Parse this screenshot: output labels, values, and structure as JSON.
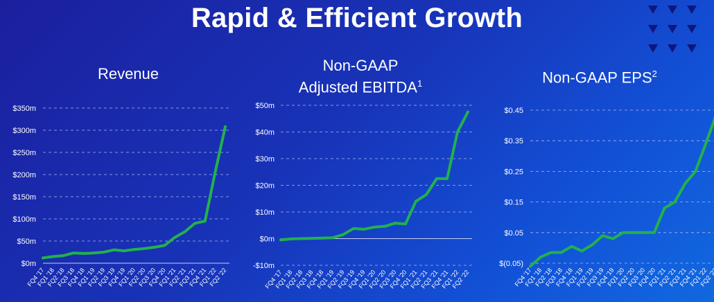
{
  "page": {
    "title": "Rapid & Efficient Growth"
  },
  "chart_data": [
    {
      "type": "line",
      "title": "Revenue",
      "title_sup": "",
      "categories": [
        "FQ4 '17",
        "FQ1 '18",
        "FQ2 '18",
        "FQ3 '18",
        "FQ4 '18",
        "FQ1 '19",
        "FQ2 '19",
        "FQ3 '19",
        "FQ4 '19",
        "FQ1 '20",
        "FQ2 '20",
        "FQ3 '20",
        "FQ4 '20",
        "FQ1 '21",
        "FQ2 '21",
        "FQ3 '21",
        "FQ4 '21",
        "FQ1 '22",
        "FQ2 '22"
      ],
      "series": [
        {
          "name": "Revenue",
          "color": "#22b14c",
          "values": [
            12,
            15,
            17,
            23,
            22,
            23,
            25,
            30,
            28,
            31,
            33,
            36,
            40,
            58,
            71,
            90,
            95,
            205,
            308
          ]
        }
      ],
      "ylim": [
        0,
        350
      ],
      "yticks": [
        0,
        50,
        100,
        150,
        200,
        250,
        300,
        350
      ],
      "ytick_labels": [
        "$0m",
        "$50m",
        "$100m",
        "$150m",
        "$200m",
        "$250m",
        "$300m",
        "$350m"
      ],
      "grid": true
    },
    {
      "type": "line",
      "title": "Non-GAAP Adjusted EBITDA",
      "title_line1": "Non-GAAP",
      "title_line2": "Adjusted EBITDA",
      "title_sup": "1",
      "categories": [
        "FQ4 '17",
        "FQ1 '18",
        "FQ2 '18",
        "FQ3 '18",
        "FQ4 '18",
        "FQ1 '19",
        "FQ2 '19",
        "FQ3 '19",
        "FQ4 '19",
        "FQ1 '20",
        "FQ2 '20",
        "FQ3 '20",
        "FQ4 '20",
        "FQ1 '21",
        "FQ2 '21",
        "FQ3 '21",
        "FQ4 '21",
        "FQ1 '22",
        "FQ2 '22"
      ],
      "series": [
        {
          "name": "Non-GAAP Adjusted EBITDA",
          "color": "#22b14c",
          "values": [
            -0.5,
            -0.1,
            0,
            0.1,
            0.2,
            0.3,
            1.5,
            3.8,
            3.5,
            4.3,
            4.6,
            5.8,
            5.5,
            14,
            16.5,
            22.5,
            22.5,
            40,
            47.5
          ]
        }
      ],
      "ylim": [
        -10,
        50
      ],
      "yticks": [
        -10,
        0,
        10,
        20,
        30,
        40,
        50
      ],
      "ytick_labels": [
        "-$10m",
        "$0m",
        "$10m",
        "$20m",
        "$30m",
        "$40m",
        "$50m"
      ],
      "grid": true
    },
    {
      "type": "line",
      "title": "Non-GAAP EPS",
      "title_sup": "2",
      "categories": [
        "FQ4 '17",
        "FQ1 '18",
        "FQ2 '18",
        "FQ3 '18",
        "FQ4 '18",
        "FQ1 '19",
        "FQ2 '19",
        "FQ3 '19",
        "FQ4 '19",
        "FQ1 '20",
        "FQ2 '20",
        "FQ3 '20",
        "FQ4 '20",
        "FQ1 '21",
        "FQ2 '21",
        "FQ3 '21",
        "FQ4 '21",
        "FQ1 '22",
        "FQ2 '22"
      ],
      "series": [
        {
          "name": "Non-GAAP EPS",
          "color": "#22b14c",
          "values": [
            -0.06,
            -0.03,
            -0.015,
            -0.015,
            0.005,
            -0.01,
            0.01,
            0.04,
            0.03,
            0.05,
            0.05,
            0.05,
            0.05,
            0.13,
            0.15,
            0.21,
            0.25,
            0.34,
            0.435
          ]
        }
      ],
      "ylim": [
        -0.05,
        0.45
      ],
      "yticks": [
        -0.05,
        0.05,
        0.15,
        0.25,
        0.35,
        0.45
      ],
      "ytick_labels": [
        "$(0.05)",
        "$0.05",
        "$0.15",
        "$0.25",
        "$0.35",
        "$0.45"
      ],
      "grid": true
    }
  ]
}
